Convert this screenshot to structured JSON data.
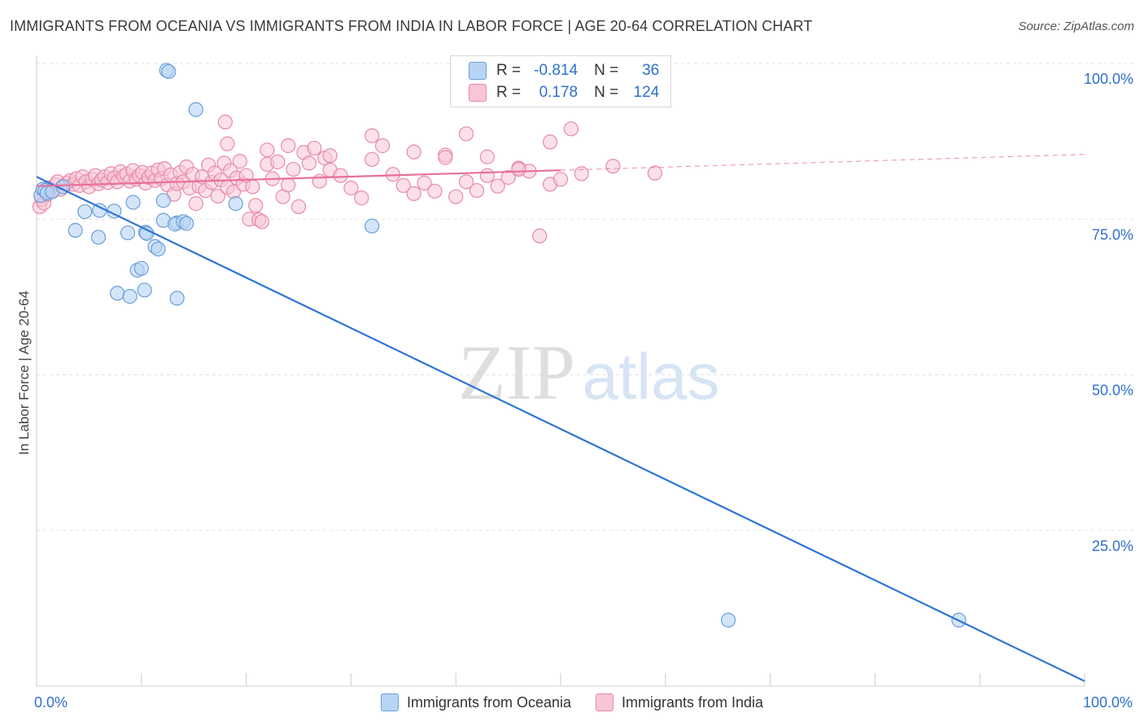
{
  "title": "IMMIGRANTS FROM OCEANIA VS IMMIGRANTS FROM INDIA IN LABOR FORCE | AGE 20-64 CORRELATION CHART",
  "source": "Source: ZipAtlas.com",
  "watermark": {
    "zip": "ZIP",
    "atlas": "atlas"
  },
  "stats_box": {
    "r_label": "R =",
    "n_label": "N =",
    "rows": [
      {
        "r": "-0.814",
        "n": "36"
      },
      {
        "r": "0.178",
        "n": "124"
      }
    ]
  },
  "legend": [
    "Immigrants from Oceania",
    "Immigrants from India"
  ],
  "x_axis_labels": {
    "left": "0.0%",
    "right": "100.0%"
  },
  "chart_data": {
    "type": "scatter",
    "title": "IMMIGRANTS FROM OCEANIA VS IMMIGRANTS FROM INDIA IN LABOR FORCE | AGE 20-64 CORRELATION CHART",
    "xlabel": "",
    "ylabel": "In Labor Force | Age 20-64",
    "xlim": [
      0,
      100
    ],
    "ylim": [
      0,
      100
    ],
    "y_ticks": [
      100,
      75,
      50,
      25
    ],
    "y_tick_labels": [
      "100.0%",
      "75.0%",
      "50.0%",
      "25.0%"
    ],
    "grid": true,
    "colors": {
      "oceania": "#6a9fd8",
      "oceania_fill": "#b8d4f5",
      "oceania_line": "#2f75d6",
      "india": "#e88aa8",
      "india_fill": "#f8c6d6",
      "india_line": "#e8709a",
      "label": "#2f6fca"
    },
    "series": [
      {
        "name": "Immigrants from Oceania",
        "r": -0.814,
        "n": 36,
        "trend": {
          "x": [
            0,
            100
          ],
          "y": [
            81.8,
            0.8
          ]
        },
        "points": [
          [
            0.4,
            78.8
          ],
          [
            0.6,
            79.8
          ],
          [
            0.8,
            79.6
          ],
          [
            1.0,
            79.2
          ],
          [
            1.5,
            79.4
          ],
          [
            2.5,
            80.2
          ],
          [
            4.6,
            76.2
          ],
          [
            6.0,
            76.4
          ],
          [
            7.4,
            76.3
          ],
          [
            9.2,
            77.7
          ],
          [
            3.7,
            73.2
          ],
          [
            5.9,
            72.1
          ],
          [
            8.7,
            72.8
          ],
          [
            10.4,
            72.9
          ],
          [
            11.3,
            70.6
          ],
          [
            9.6,
            66.8
          ],
          [
            10.0,
            67.1
          ],
          [
            12.1,
            74.8
          ],
          [
            11.6,
            70.2
          ],
          [
            13.4,
            74.4
          ],
          [
            13.2,
            74.2
          ],
          [
            12.1,
            78.0
          ],
          [
            10.5,
            72.7
          ],
          [
            10.3,
            63.6
          ],
          [
            7.7,
            63.1
          ],
          [
            8.9,
            62.6
          ],
          [
            13.4,
            62.3
          ],
          [
            14.0,
            74.6
          ],
          [
            14.3,
            74.3
          ],
          [
            15.2,
            92.6
          ],
          [
            12.4,
            98.9
          ],
          [
            12.6,
            98.7
          ],
          [
            19.0,
            77.5
          ],
          [
            32.0,
            73.9
          ],
          [
            66.0,
            10.6
          ],
          [
            88.0,
            10.6
          ]
        ]
      },
      {
        "name": "Immigrants from India",
        "r": 0.178,
        "n": 124,
        "trend": {
          "x": [
            0,
            100
          ],
          "y": [
            80.3,
            85.4
          ]
        },
        "trend_solid_until": 50,
        "points": [
          [
            0.3,
            77.0
          ],
          [
            0.5,
            78.2
          ],
          [
            0.7,
            77.6
          ],
          [
            1.0,
            79.0
          ],
          [
            1.2,
            80.0
          ],
          [
            1.5,
            79.6
          ],
          [
            1.8,
            80.5
          ],
          [
            2.0,
            81.0
          ],
          [
            2.3,
            79.8
          ],
          [
            2.6,
            80.2
          ],
          [
            2.9,
            80.8
          ],
          [
            3.2,
            81.2
          ],
          [
            3.5,
            80.6
          ],
          [
            3.8,
            81.5
          ],
          [
            4.1,
            80.4
          ],
          [
            4.4,
            81.8
          ],
          [
            4.7,
            81.0
          ],
          [
            5.0,
            80.2
          ],
          [
            5.3,
            81.4
          ],
          [
            5.6,
            82.0
          ],
          [
            5.9,
            80.7
          ],
          [
            6.2,
            81.3
          ],
          [
            6.5,
            81.8
          ],
          [
            6.8,
            80.9
          ],
          [
            7.1,
            82.3
          ],
          [
            7.4,
            81.6
          ],
          [
            7.7,
            81.0
          ],
          [
            8.0,
            82.6
          ],
          [
            8.3,
            81.9
          ],
          [
            8.6,
            82.2
          ],
          [
            8.9,
            81.1
          ],
          [
            9.2,
            82.8
          ],
          [
            9.5,
            81.4
          ],
          [
            9.8,
            82.0
          ],
          [
            10.1,
            82.5
          ],
          [
            10.4,
            80.8
          ],
          [
            10.7,
            81.7
          ],
          [
            11.0,
            82.4
          ],
          [
            11.3,
            81.2
          ],
          [
            11.6,
            82.9
          ],
          [
            11.9,
            81.5
          ],
          [
            12.2,
            83.1
          ],
          [
            12.5,
            80.5
          ],
          [
            12.8,
            82.1
          ],
          [
            13.1,
            79.0
          ],
          [
            13.4,
            80.7
          ],
          [
            13.7,
            82.5
          ],
          [
            14.0,
            81.0
          ],
          [
            14.3,
            83.4
          ],
          [
            14.6,
            80.0
          ],
          [
            14.9,
            82.2
          ],
          [
            15.2,
            77.5
          ],
          [
            15.5,
            80.3
          ],
          [
            15.8,
            81.8
          ],
          [
            16.1,
            79.6
          ],
          [
            16.4,
            83.7
          ],
          [
            16.7,
            80.9
          ],
          [
            17.0,
            82.4
          ],
          [
            17.3,
            78.7
          ],
          [
            17.6,
            81.3
          ],
          [
            17.9,
            84.0
          ],
          [
            18.2,
            80.1
          ],
          [
            18.5,
            82.8
          ],
          [
            18.8,
            79.4
          ],
          [
            19.1,
            81.6
          ],
          [
            19.4,
            84.3
          ],
          [
            19.7,
            80.6
          ],
          [
            20.0,
            82.0
          ],
          [
            20.3,
            75.0
          ],
          [
            20.6,
            80.2
          ],
          [
            20.9,
            77.2
          ],
          [
            21.2,
            74.9
          ],
          [
            21.5,
            74.6
          ],
          [
            22.0,
            83.8
          ],
          [
            22.5,
            81.5
          ],
          [
            23.0,
            84.2
          ],
          [
            23.5,
            78.6
          ],
          [
            24.0,
            80.5
          ],
          [
            24.5,
            83.0
          ],
          [
            25.0,
            77.0
          ],
          [
            25.5,
            85.7
          ],
          [
            26.0,
            84.0
          ],
          [
            26.5,
            86.4
          ],
          [
            27.0,
            81.1
          ],
          [
            27.5,
            84.8
          ],
          [
            28.0,
            82.9
          ],
          [
            29.0,
            82.0
          ],
          [
            30.0,
            80.0
          ],
          [
            31.0,
            78.4
          ],
          [
            32.0,
            84.6
          ],
          [
            33.0,
            86.8
          ],
          [
            34.0,
            82.2
          ],
          [
            35.0,
            80.4
          ],
          [
            36.0,
            79.1
          ],
          [
            37.0,
            80.8
          ],
          [
            38.0,
            79.5
          ],
          [
            39.0,
            85.3
          ],
          [
            40.0,
            78.6
          ],
          [
            41.0,
            81.0
          ],
          [
            42.0,
            79.6
          ],
          [
            43.0,
            82.0
          ],
          [
            44.0,
            80.3
          ],
          [
            45.0,
            81.7
          ],
          [
            46.0,
            83.2
          ],
          [
            47.0,
            82.7
          ],
          [
            48.0,
            72.3
          ],
          [
            49.0,
            80.6
          ],
          [
            50.0,
            81.4
          ],
          [
            18.0,
            90.6
          ],
          [
            18.2,
            87.1
          ],
          [
            22.0,
            86.1
          ],
          [
            24.0,
            86.8
          ],
          [
            28.0,
            85.2
          ],
          [
            32.0,
            88.4
          ],
          [
            36.0,
            85.8
          ],
          [
            39.0,
            84.9
          ],
          [
            41.0,
            88.7
          ],
          [
            43.0,
            85.0
          ],
          [
            46.0,
            83.0
          ],
          [
            49.0,
            87.4
          ],
          [
            51.0,
            89.5
          ],
          [
            52.0,
            82.3
          ],
          [
            55.0,
            83.5
          ],
          [
            59.0,
            82.4
          ]
        ]
      }
    ]
  }
}
